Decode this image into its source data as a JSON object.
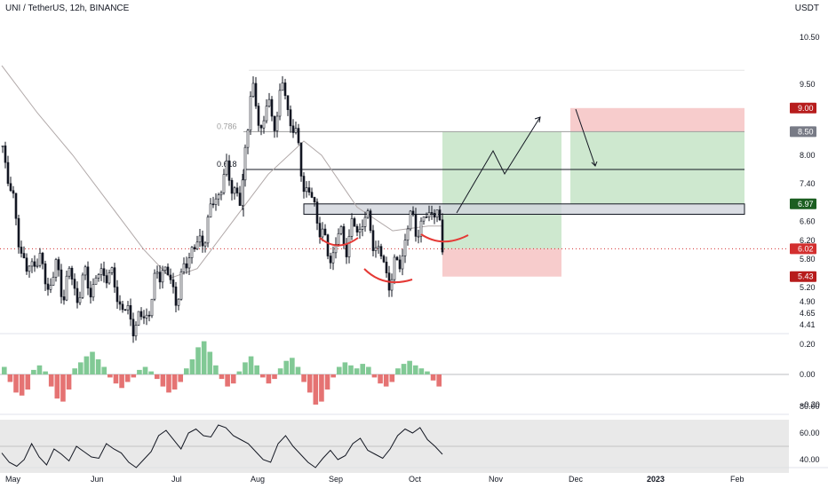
{
  "header": {
    "title": "UNI / TetherUS, 12h, BINANCE",
    "currency": "USDT"
  },
  "chart_data": {
    "type": "candlestick",
    "symbol": "UNI / TetherUS",
    "interval": "12h",
    "exchange": "BINANCE",
    "price_axis": [
      "10.50",
      "9.50",
      "9.00",
      "8.50",
      "8.00",
      "7.40",
      "6.60",
      "6.20",
      "5.80",
      "5.20",
      "4.90",
      "4.65",
      "4.41"
    ],
    "price_ylim": [
      4.35,
      11.2
    ],
    "price_labels": [
      {
        "text": "9.00",
        "value": 9.0,
        "color": "#b71c1c"
      },
      {
        "text": "8.50",
        "value": 8.5,
        "color": "#787b86"
      },
      {
        "text": "6.97",
        "value": 6.97,
        "color": "#1b5e20"
      },
      {
        "text": "6.02",
        "value": 6.02,
        "color": "#d32f2f"
      },
      {
        "text": "5.43",
        "value": 5.43,
        "color": "#b71c1c"
      }
    ],
    "fib_levels": [
      {
        "label": "0.786",
        "value": 8.5,
        "color": "#9e9e9e"
      },
      {
        "label": "0.618",
        "value": 7.7,
        "color": "#131722"
      }
    ],
    "zone": {
      "low": 6.75,
      "high": 6.97
    },
    "long_position": {
      "entry": 6.02,
      "target": 8.5,
      "stop": 5.43
    },
    "short_position": {
      "entry": 8.5,
      "target": 6.97,
      "stop": 9.0
    },
    "current_price": 6.02,
    "x_axis": [
      "May",
      "Jun",
      "Jul",
      "Aug",
      "Sep",
      "Oct",
      "Nov",
      "Dec",
      "2023",
      "Feb"
    ],
    "price_path": [
      [
        0,
        8.2
      ],
      [
        6,
        7.6
      ],
      [
        12,
        6.9
      ],
      [
        20,
        6.1
      ],
      [
        28,
        5.4
      ],
      [
        36,
        5.9
      ],
      [
        44,
        5.6
      ],
      [
        52,
        5.2
      ],
      [
        60,
        5.6
      ],
      [
        68,
        5.1
      ],
      [
        76,
        5.5
      ],
      [
        84,
        5.0
      ],
      [
        92,
        5.4
      ],
      [
        100,
        5.2
      ],
      [
        108,
        5.4
      ],
      [
        116,
        5.6
      ],
      [
        124,
        5.3
      ],
      [
        132,
        4.9
      ],
      [
        140,
        4.6
      ],
      [
        148,
        4.45
      ],
      [
        156,
        4.5
      ],
      [
        164,
        4.7
      ],
      [
        172,
        5.3
      ],
      [
        180,
        5.7
      ],
      [
        188,
        5.3
      ],
      [
        196,
        5.0
      ],
      [
        204,
        5.5
      ],
      [
        212,
        6.1
      ],
      [
        220,
        6.0
      ],
      [
        228,
        6.4
      ],
      [
        236,
        6.9
      ],
      [
        244,
        7.3
      ],
      [
        252,
        7.6
      ],
      [
        260,
        7.4
      ],
      [
        268,
        6.8
      ],
      [
        274,
        8.5
      ],
      [
        280,
        9.4
      ],
      [
        286,
        8.9
      ],
      [
        292,
        8.6
      ],
      [
        298,
        9.1
      ],
      [
        304,
        8.7
      ],
      [
        310,
        9.0
      ],
      [
        316,
        9.5
      ],
      [
        322,
        8.9
      ],
      [
        328,
        8.5
      ],
      [
        334,
        8.0
      ],
      [
        340,
        7.3
      ],
      [
        346,
        7.1
      ],
      [
        352,
        6.9
      ],
      [
        358,
        6.4
      ],
      [
        364,
        6.0
      ],
      [
        370,
        5.85
      ],
      [
        376,
        6.2
      ],
      [
        382,
        6.3
      ],
      [
        388,
        6.1
      ],
      [
        394,
        6.5
      ],
      [
        400,
        6.4
      ],
      [
        406,
        6.7
      ],
      [
        412,
        6.5
      ],
      [
        418,
        6.2
      ],
      [
        424,
        5.9
      ],
      [
        430,
        5.6
      ],
      [
        436,
        5.35
      ],
      [
        442,
        5.6
      ],
      [
        448,
        5.8
      ],
      [
        454,
        6.3
      ],
      [
        460,
        6.7
      ],
      [
        466,
        6.5
      ],
      [
        472,
        6.4
      ],
      [
        478,
        6.8
      ],
      [
        484,
        6.9
      ],
      [
        490,
        6.6
      ],
      [
        496,
        6.02
      ]
    ],
    "ma_path": [
      [
        0,
        9.9
      ],
      [
        40,
        8.9
      ],
      [
        80,
        8.0
      ],
      [
        120,
        7.0
      ],
      [
        160,
        6.0
      ],
      [
        190,
        5.4
      ],
      [
        220,
        5.6
      ],
      [
        260,
        6.6
      ],
      [
        300,
        7.6
      ],
      [
        340,
        8.3
      ],
      [
        360,
        8.0
      ],
      [
        400,
        6.9
      ],
      [
        440,
        6.4
      ],
      [
        480,
        6.5
      ],
      [
        496,
        6.5
      ]
    ],
    "macd": {
      "ylim": [
        -0.28,
        0.25
      ],
      "ticks": [
        "0.20",
        "0.00",
        "−0.20"
      ],
      "histogram": [
        0.05,
        -0.05,
        -0.12,
        -0.14,
        -0.1,
        0.03,
        0.06,
        0.02,
        -0.08,
        -0.16,
        -0.18,
        -0.1,
        0.04,
        0.08,
        0.12,
        0.15,
        0.1,
        0.05,
        -0.02,
        -0.06,
        -0.09,
        -0.05,
        -0.02,
        0.03,
        0.05,
        0.02,
        -0.03,
        -0.08,
        -0.12,
        -0.1,
        -0.05,
        0.04,
        0.1,
        0.18,
        0.22,
        0.15,
        0.06,
        -0.03,
        -0.08,
        -0.06,
        0.02,
        0.08,
        0.12,
        0.06,
        -0.02,
        -0.06,
        -0.03,
        0.04,
        0.09,
        0.11,
        0.05,
        -0.05,
        -0.12,
        -0.2,
        -0.18,
        -0.1,
        -0.02,
        0.05,
        0.08,
        0.06,
        0.04,
        0.07,
        0.05,
        -0.02,
        -0.06,
        -0.08,
        -0.05,
        0.04,
        0.07,
        0.09,
        0.06,
        0.04,
        0.02,
        -0.04,
        -0.08
      ]
    },
    "rsi": {
      "ylim": [
        20,
        80
      ],
      "ticks": [
        "80.00",
        "60.00",
        "40.00"
      ],
      "band": [
        30,
        70
      ],
      "midline": 50,
      "values": [
        45,
        38,
        35,
        40,
        52,
        42,
        36,
        48,
        44,
        39,
        50,
        46,
        42,
        41,
        52,
        48,
        45,
        38,
        34,
        40,
        46,
        58,
        62,
        55,
        48,
        60,
        63,
        58,
        57,
        66,
        64,
        58,
        55,
        52,
        46,
        40,
        38,
        52,
        58,
        50,
        44,
        38,
        34,
        41,
        47,
        40,
        43,
        52,
        56,
        47,
        44,
        41,
        48,
        58,
        63,
        60,
        64,
        55,
        50,
        44
      ]
    }
  }
}
